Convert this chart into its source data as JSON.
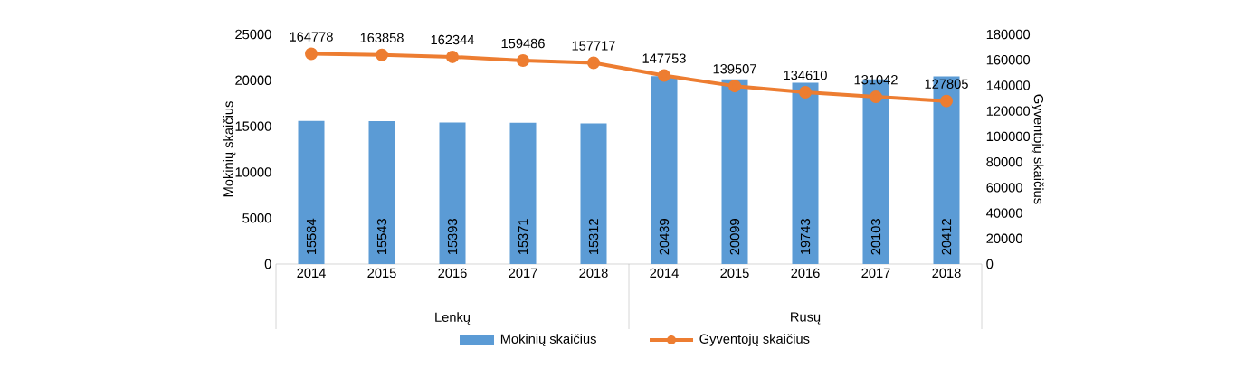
{
  "chart_data": {
    "type": "bar",
    "ylabel": "Mokinių skaičius",
    "y2label": "Gyventojų skaičius",
    "categories": [
      "2014",
      "2015",
      "2016",
      "2017",
      "2018",
      "2014",
      "2015",
      "2016",
      "2017",
      "2018"
    ],
    "annotations": [
      "Lenkų",
      "Rusų"
    ],
    "series": [
      {
        "name": "Mokinių skaičius",
        "color": "#5b9bd5",
        "values": [
          15584,
          15543,
          15393,
          15371,
          15312,
          20439,
          20099,
          19743,
          20103,
          20412
        ]
      },
      {
        "name": "Gyventojų skaičius",
        "type": "line",
        "axis": "y2",
        "color": "#ed7d31",
        "values": [
          164778,
          163858,
          162344,
          159486,
          157717,
          147753,
          139507,
          134610,
          131042,
          127805
        ]
      }
    ],
    "ylim": [
      0,
      25000
    ],
    "yticks": [
      0,
      5000,
      10000,
      15000,
      20000,
      25000
    ],
    "y2lim": [
      0,
      180000
    ],
    "y2ticks": [
      0,
      20000,
      40000,
      60000,
      80000,
      100000,
      120000,
      140000,
      160000,
      180000
    ],
    "data_labels": true,
    "marker": "circle",
    "legend": "bottom"
  }
}
